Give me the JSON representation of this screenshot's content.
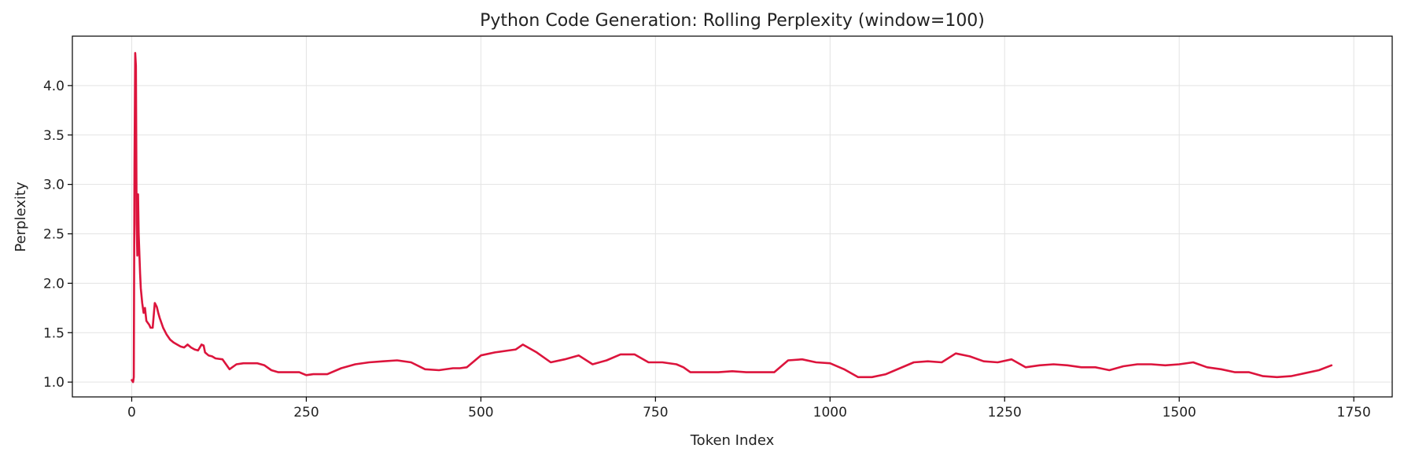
{
  "chart_data": {
    "type": "line",
    "title": "Python Code Generation: Rolling Perplexity (window=100)",
    "xlabel": "Token Index",
    "ylabel": "Perplexity",
    "xlim": [
      -85,
      1805
    ],
    "ylim": [
      0.85,
      4.5
    ],
    "xticks": [
      0,
      250,
      500,
      750,
      1000,
      1250,
      1500,
      1750
    ],
    "xtick_labels": [
      "0",
      "250",
      "500",
      "750",
      "1000",
      "1250",
      "1500",
      "1750"
    ],
    "yticks": [
      1.0,
      1.5,
      2.0,
      2.5,
      3.0,
      3.5,
      4.0
    ],
    "ytick_labels": [
      "1.0",
      "1.5",
      "2.0",
      "2.5",
      "3.0",
      "3.5",
      "4.0"
    ],
    "grid": true,
    "series": [
      {
        "color": "#dc143c",
        "x": [
          0,
          2,
          3,
          4,
          5,
          6,
          7,
          8,
          9,
          10,
          11,
          12,
          13,
          15,
          17,
          19,
          21,
          23,
          25,
          27,
          30,
          33,
          36,
          38,
          40,
          45,
          50,
          55,
          60,
          65,
          70,
          75,
          80,
          85,
          90,
          95,
          100,
          103,
          105,
          110,
          115,
          120,
          130,
          140,
          150,
          160,
          170,
          180,
          190,
          200,
          210,
          220,
          240,
          250,
          260,
          280,
          300,
          320,
          340,
          360,
          380,
          400,
          420,
          440,
          460,
          470,
          480,
          500,
          520,
          540,
          550,
          560,
          580,
          600,
          620,
          640,
          660,
          680,
          700,
          720,
          740,
          760,
          780,
          790,
          800,
          820,
          840,
          860,
          880,
          900,
          920,
          940,
          960,
          980,
          1000,
          1020,
          1040,
          1060,
          1080,
          1100,
          1120,
          1140,
          1160,
          1180,
          1200,
          1220,
          1240,
          1260,
          1280,
          1300,
          1320,
          1340,
          1360,
          1380,
          1400,
          1420,
          1440,
          1460,
          1480,
          1500,
          1520,
          1540,
          1560,
          1580,
          1600,
          1620,
          1640,
          1660,
          1680,
          1700,
          1718
        ],
        "y": [
          1.02,
          1.0,
          1.05,
          3.2,
          4.33,
          4.2,
          2.6,
          2.28,
          2.9,
          2.5,
          2.3,
          2.1,
          1.95,
          1.8,
          1.7,
          1.75,
          1.62,
          1.6,
          1.58,
          1.55,
          1.55,
          1.8,
          1.76,
          1.7,
          1.65,
          1.55,
          1.48,
          1.43,
          1.4,
          1.38,
          1.36,
          1.35,
          1.38,
          1.35,
          1.33,
          1.32,
          1.38,
          1.37,
          1.3,
          1.27,
          1.26,
          1.24,
          1.23,
          1.13,
          1.18,
          1.19,
          1.19,
          1.19,
          1.17,
          1.12,
          1.1,
          1.1,
          1.1,
          1.07,
          1.08,
          1.08,
          1.14,
          1.18,
          1.2,
          1.21,
          1.22,
          1.2,
          1.13,
          1.12,
          1.14,
          1.14,
          1.15,
          1.27,
          1.3,
          1.32,
          1.33,
          1.38,
          1.3,
          1.2,
          1.23,
          1.27,
          1.18,
          1.22,
          1.28,
          1.28,
          1.2,
          1.2,
          1.18,
          1.15,
          1.1,
          1.1,
          1.1,
          1.11,
          1.1,
          1.1,
          1.1,
          1.22,
          1.23,
          1.2,
          1.19,
          1.13,
          1.05,
          1.05,
          1.08,
          1.14,
          1.2,
          1.21,
          1.2,
          1.29,
          1.26,
          1.21,
          1.2,
          1.23,
          1.15,
          1.17,
          1.18,
          1.17,
          1.15,
          1.15,
          1.12,
          1.16,
          1.18,
          1.18,
          1.17,
          1.18,
          1.2,
          1.15,
          1.13,
          1.1,
          1.1,
          1.06,
          1.05,
          1.06,
          1.09,
          1.12,
          1.17
        ]
      }
    ]
  }
}
